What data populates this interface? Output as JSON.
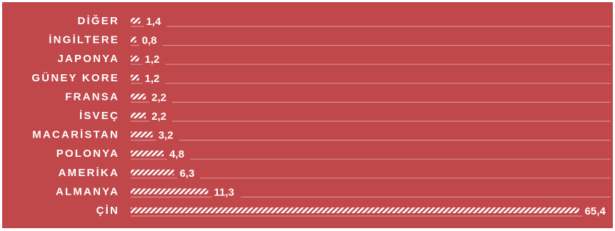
{
  "chart_data": {
    "type": "bar",
    "orientation": "horizontal",
    "categories": [
      "DİĞER",
      "İNGİLTERE",
      "JAPONYA",
      "GÜNEY KORE",
      "FRANSA",
      "İSVEÇ",
      "MACARİSTAN",
      "POLONYA",
      "AMERİKA",
      "ALMANYA",
      "ÇİN"
    ],
    "values": [
      1.4,
      0.8,
      1.2,
      1.2,
      2.2,
      2.2,
      3.2,
      4.8,
      6.3,
      11.3,
      65.4
    ],
    "value_labels": [
      "1,4",
      "0,8",
      "1,2",
      "1,2",
      "2,2",
      "2,2",
      "3,2",
      "4,8",
      "6,3",
      "11,3",
      "65,4"
    ],
    "title": "",
    "xlabel": "",
    "ylabel": "",
    "xlim": [
      0,
      70
    ],
    "grid": true,
    "legend": "none",
    "bar_pattern": "diagonal-hatch",
    "colors": {
      "background": "#c0474a",
      "gridline": "#dc8e90",
      "bar": "#ffffff",
      "text": "#ffffff"
    }
  }
}
